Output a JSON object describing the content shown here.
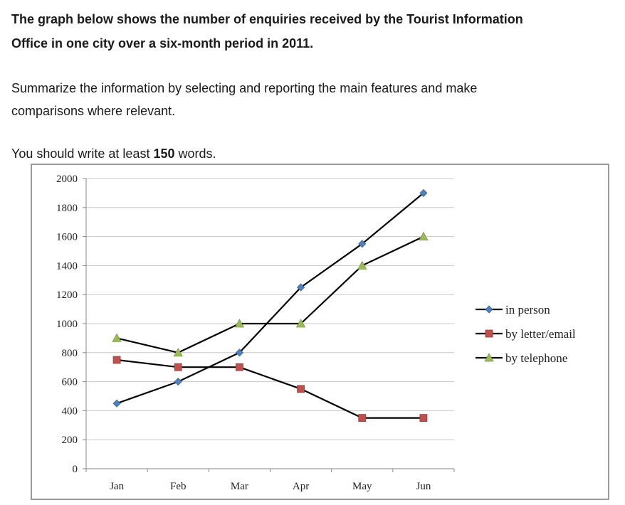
{
  "prompt": {
    "title_line1": "The graph below shows the number of enquiries received by the Tourist Information",
    "title_line2": "Office in one city over a six-month period in 2011.",
    "instruction_line1": "Summarize the information by selecting and reporting the main features and make",
    "instruction_line2": "comparisons where relevant.",
    "min_words_prefix": "You should write at least ",
    "min_words_count": "150",
    "min_words_suffix": " words."
  },
  "chart_data": {
    "type": "line",
    "categories": [
      "Jan",
      "Feb",
      "Mar",
      "Apr",
      "May",
      "Jun"
    ],
    "ylim": [
      0,
      2000
    ],
    "yticks": [
      0,
      200,
      400,
      600,
      800,
      1000,
      1200,
      1400,
      1600,
      1800,
      2000
    ],
    "grid": true,
    "legend_position": "right",
    "series": [
      {
        "name": "in person",
        "marker": "diamond",
        "color": "#4f81bd",
        "values": [
          450,
          600,
          800,
          1250,
          1550,
          1900
        ]
      },
      {
        "name": "by letter/email",
        "marker": "square",
        "color": "#c0504d",
        "values": [
          750,
          700,
          700,
          550,
          350,
          350
        ]
      },
      {
        "name": "by telephone",
        "marker": "triangle",
        "color": "#9bbb59",
        "values": [
          900,
          800,
          1000,
          1000,
          1400,
          1600
        ]
      }
    ]
  }
}
